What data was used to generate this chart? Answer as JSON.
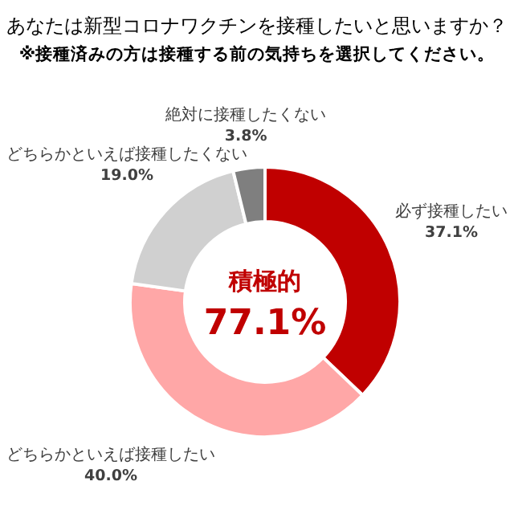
{
  "chart_data": {
    "type": "donut",
    "title": "あなたは新型コロナワクチンを接種したいと思いますか？",
    "subtitle": "※接種済みの方は接種する前の気持ちを選択してください。",
    "categories": [
      "必ず接種したい",
      "どちらかといえば接種したい",
      "どちらかといえば接種したくない",
      "絶対に接種したくない"
    ],
    "values": [
      37.1,
      40.0,
      19.0,
      3.8
    ],
    "colors": [
      "#c00000",
      "#ffa7a7",
      "#d0d0d0",
      "#7f7f7f"
    ],
    "value_labels": [
      "37.1%",
      "40.0%",
      "19.0%",
      "3.8%"
    ],
    "annotations": [
      "積極的",
      "77.1%"
    ]
  }
}
